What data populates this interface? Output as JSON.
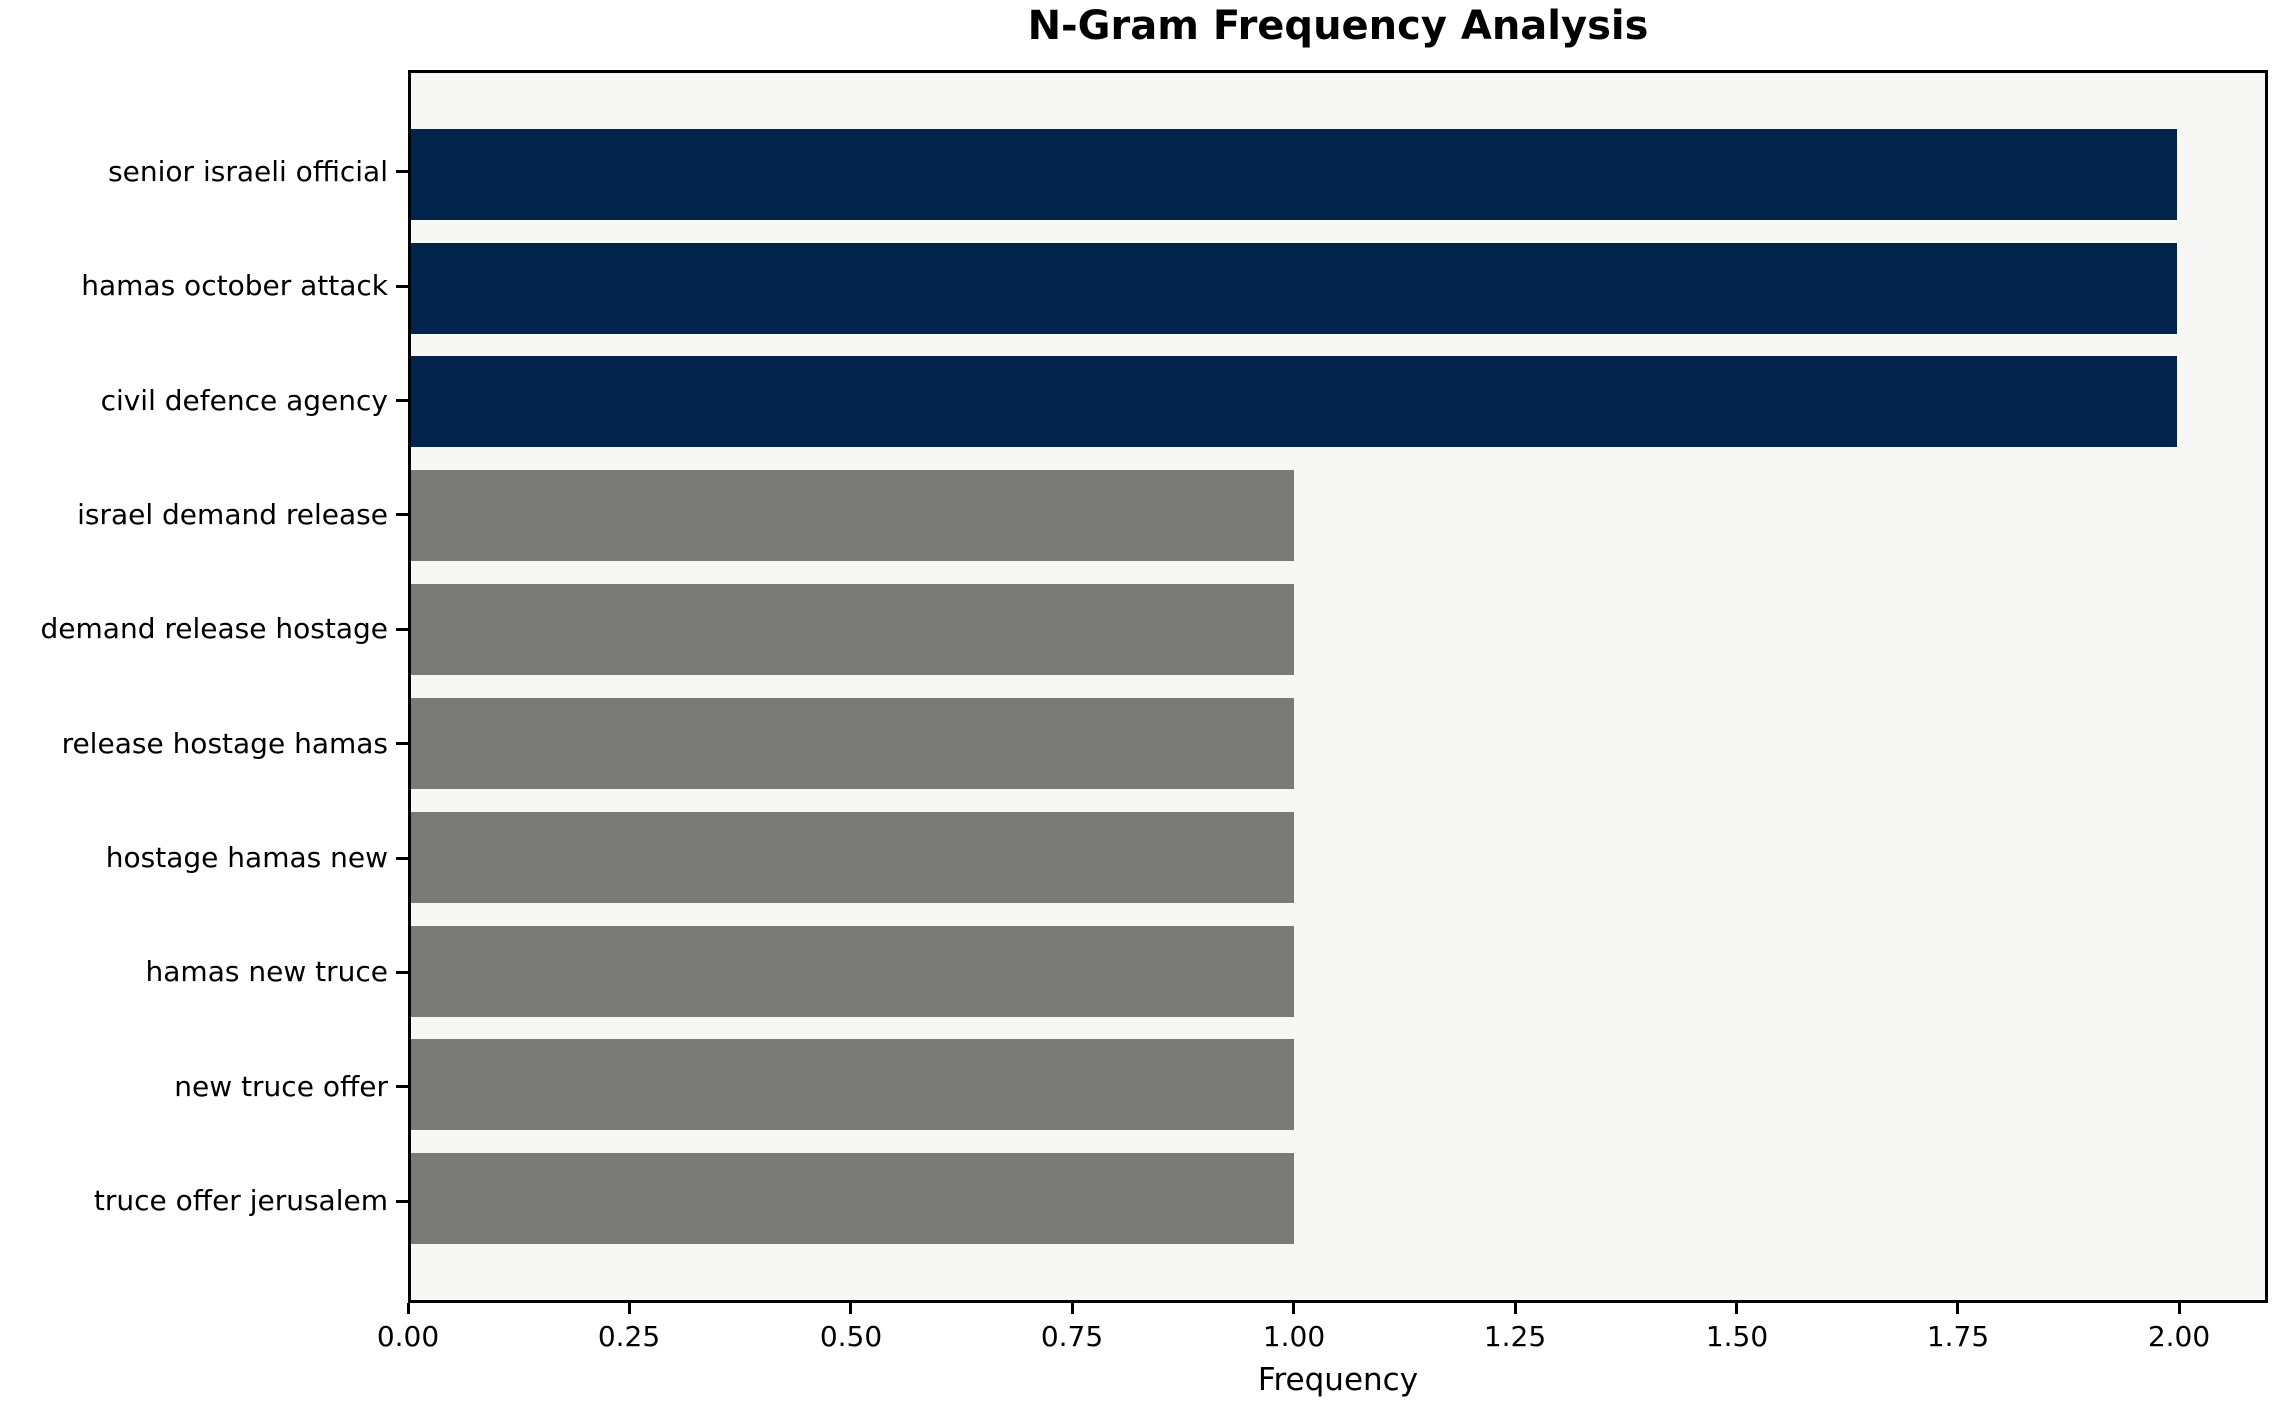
{
  "chart_data": {
    "type": "bar",
    "orientation": "horizontal",
    "title": "N-Gram Frequency Analysis",
    "xlabel": "Frequency",
    "ylabel": "",
    "categories": [
      "senior israeli official",
      "hamas october attack",
      "civil defence agency",
      "israel demand release",
      "demand release hostage",
      "release hostage hamas",
      "hostage hamas new",
      "hamas new truce",
      "new truce offer",
      "truce offer jerusalem"
    ],
    "values": [
      2,
      2,
      2,
      1,
      1,
      1,
      1,
      1,
      1,
      1
    ],
    "bar_colors": [
      "#02234C",
      "#02234C",
      "#02234C",
      "#7A7A78",
      "#7A7A78",
      "#7A7A78",
      "#7A7A78",
      "#7A7A78",
      "#7A7A78",
      "#7A7A78"
    ],
    "xlim": [
      0,
      2.1
    ],
    "xticks": [
      0.0,
      0.25,
      0.5,
      0.75,
      1.0,
      1.25,
      1.5,
      1.75,
      2.0
    ],
    "xtick_labels": [
      "0.00",
      "0.25",
      "0.50",
      "0.75",
      "1.00",
      "1.25",
      "1.50",
      "1.75",
      "2.00"
    ],
    "grid": false,
    "legend": null,
    "plot_background": "#F7F7F6",
    "axis_color": "#000000",
    "highlight_color": "#02234C",
    "default_color": "#7A7A78"
  }
}
